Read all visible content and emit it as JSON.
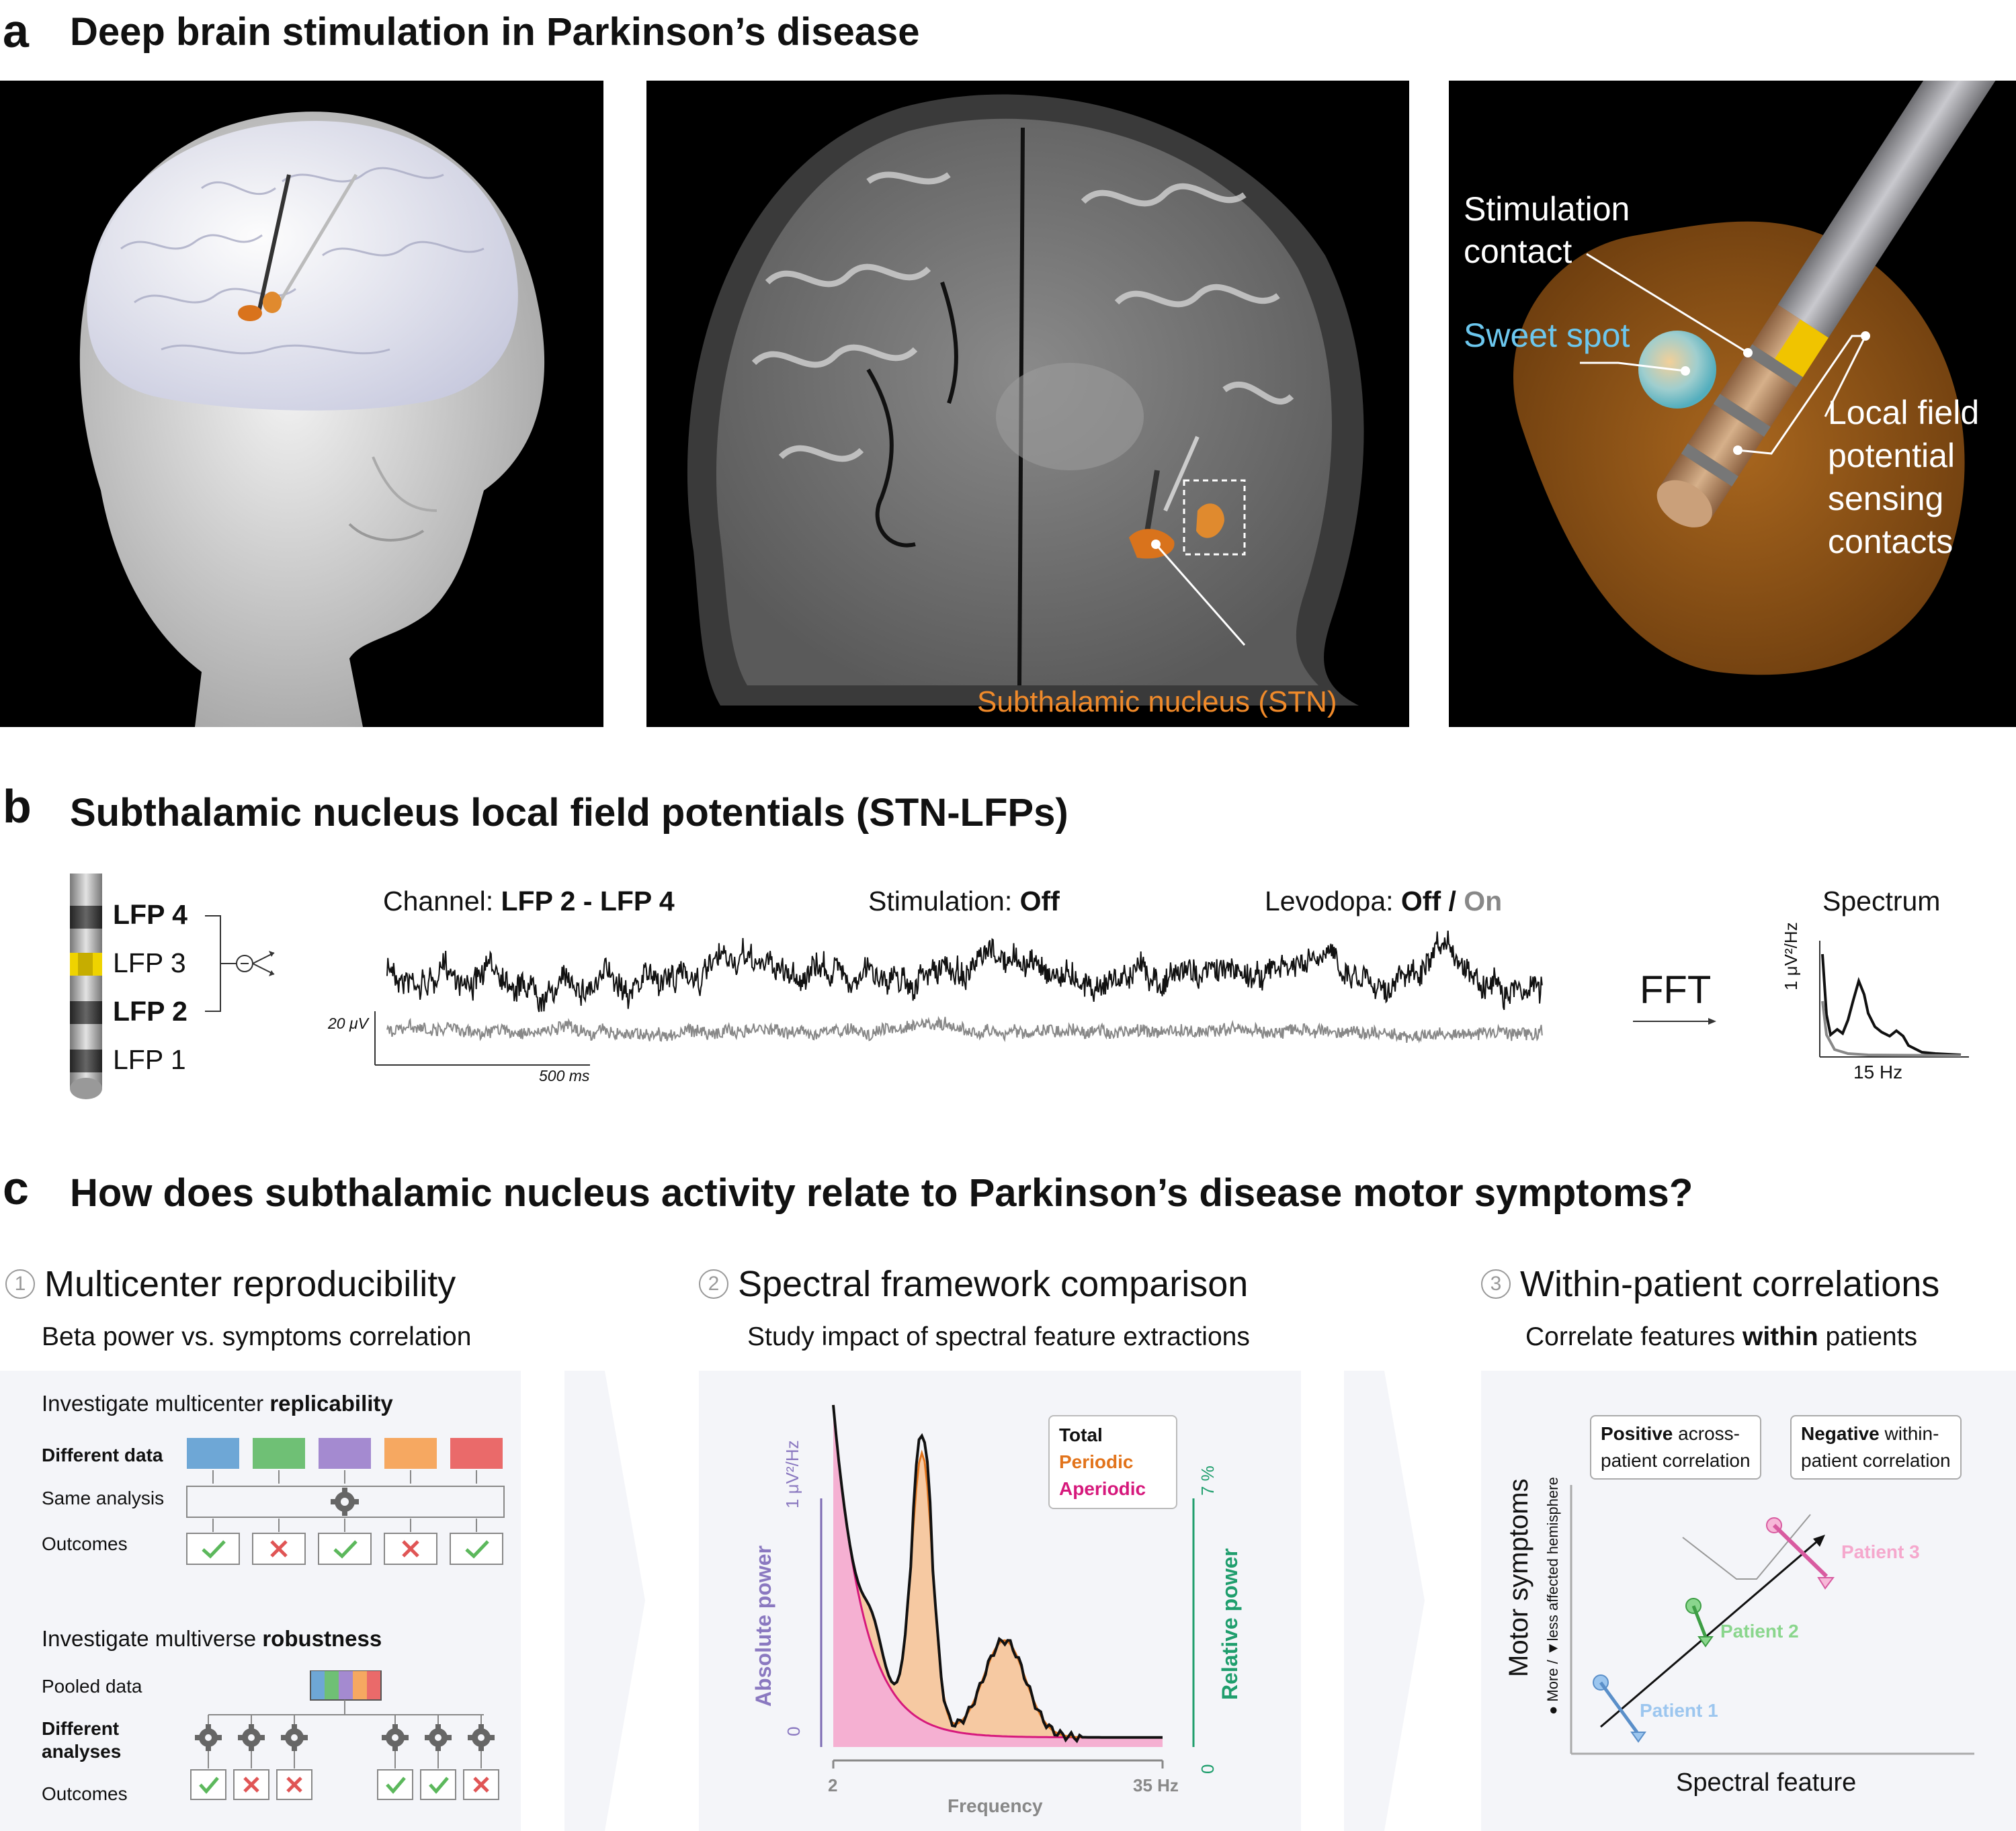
{
  "panel_a": {
    "letter": "a",
    "title": "Deep brain stimulation in Parkinson’s disease",
    "stn_label": "Subthalamic nucleus (STN)",
    "stim_contact_1": "Stimulation",
    "stim_contact_2": "contact",
    "sweet_spot": "Sweet spot",
    "lfp_1": "Local field",
    "lfp_2": "potential",
    "lfp_3": "sensing",
    "lfp_4": "contacts"
  },
  "panel_b": {
    "letter": "b",
    "title": "Subthalamic nucleus local field potentials (STN-LFPs)",
    "contacts": [
      "LFP 4",
      "LFP 3",
      "LFP 2",
      "LFP 1"
    ],
    "channel_label": "Channel: ",
    "channel_value": "LFP 2 - LFP 4",
    "stim_label": "Stimulation: ",
    "stim_value": "Off",
    "levodopa_label": "Levodopa: ",
    "levodopa_off": "Off /",
    "levodopa_on": " On",
    "scale_uv": "20 μV",
    "scale_ms": "500 ms",
    "fft": "FFT",
    "spectrum": "Spectrum",
    "spectrum_ylabel": "1 μV²/Hz",
    "spectrum_xtick": "15 Hz"
  },
  "panel_c": {
    "letter": "c",
    "title": "How does subthalamic nucleus activity relate to Parkinson’s disease motor symptoms?",
    "col1": {
      "num": "1",
      "title": "Multicenter reproducibility",
      "subtitle": "Beta power vs. symptoms correlation",
      "inv1_pre": "Investigate multicenter ",
      "inv1_bold": "replicability",
      "diff_data": "Different data",
      "same_analysis": "Same analysis",
      "outcomes": "Outcomes",
      "inv2_pre": "Investigate multiverse ",
      "inv2_bold": "robustness",
      "pooled": "Pooled data",
      "diff_an_1": "Different",
      "diff_an_2": "analyses",
      "outcomes2": "Outcomes",
      "colors": [
        "#6ea7d6",
        "#6fc075",
        "#a48ad0",
        "#f6a861",
        "#ea6a6a"
      ]
    },
    "col2": {
      "num": "2",
      "title": "Spectral framework comparison",
      "subtitle": "Study impact of spectral feature extractions",
      "legend": [
        "Total",
        "Periodic",
        "Aperiodic"
      ],
      "ylabel_left": "Absolute power",
      "ylabel_right": "Relative power",
      "ytick_left_top": "1 μV²/Hz",
      "ytick_left_bot": "0",
      "ytick_right_top": "7 %",
      "ytick_right_bot": "0",
      "xtick_left": "2",
      "xtick_right": "35 Hz",
      "xlabel": "Frequency"
    },
    "col3": {
      "num": "3",
      "title": "Within-patient correlations",
      "subtitle_pre": "Correlate features ",
      "subtitle_bold": "within",
      "subtitle_post": " patients",
      "box1_bold": "Positive",
      "box1_rest1": " across-",
      "box1_rest2": "patient correlation",
      "box2_bold": "Negative",
      "box2_rest1": " within-",
      "box2_rest2": "patient correlation",
      "ylabel": "Motor symptoms",
      "ysub": "● More / ▼less affected hemisphere",
      "xlabel": "Spectral feature",
      "patients": [
        "Patient 1",
        "Patient 2",
        "Patient 3"
      ]
    }
  }
}
